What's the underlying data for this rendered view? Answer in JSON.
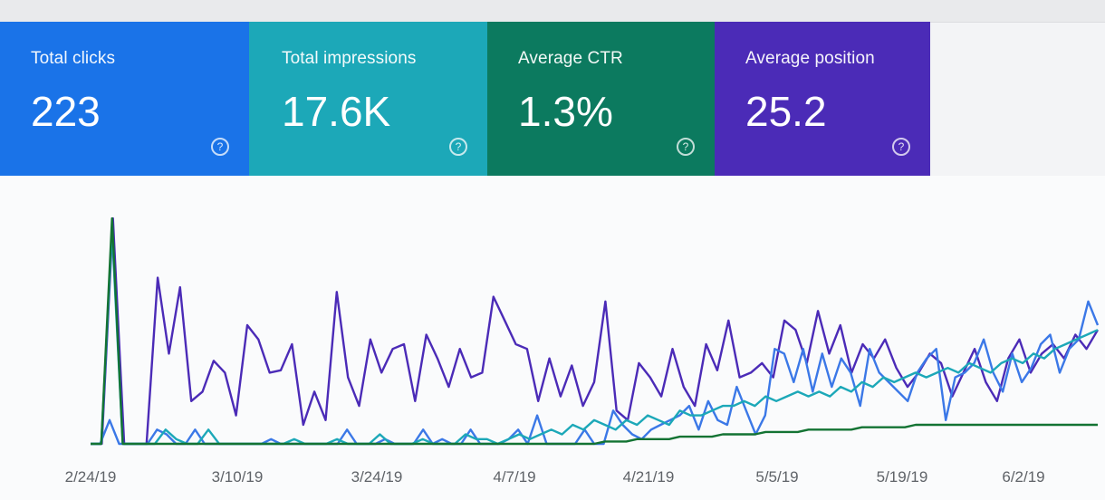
{
  "cards": [
    {
      "label": "Total clicks",
      "value": "223",
      "color": "#1a73e8"
    },
    {
      "label": "Total impressions",
      "value": "17.6K",
      "color": "#1ca8b8"
    },
    {
      "label": "Average CTR",
      "value": "1.3%",
      "color": "#0c7a5f"
    },
    {
      "label": "Average position",
      "value": "25.2",
      "color": "#4b2bb7"
    }
  ],
  "help_glyph": "?",
  "chart_data": {
    "type": "line",
    "x_tick_labels": [
      "2/24/19",
      "3/10/19",
      "3/24/19",
      "4/7/19",
      "4/21/19",
      "5/5/19",
      "5/19/19",
      "6/2/19"
    ],
    "grid": false,
    "series": [
      {
        "color": "#4b2bb7",
        "values": [
          0,
          0,
          95,
          0,
          0,
          0,
          70,
          38,
          66,
          18,
          22,
          35,
          30,
          12,
          50,
          44,
          30,
          31,
          42,
          8,
          22,
          10,
          64,
          28,
          16,
          44,
          30,
          40,
          42,
          18,
          46,
          36,
          24,
          40,
          28,
          30,
          62,
          52,
          42,
          40,
          18,
          36,
          20,
          33,
          16,
          26,
          60,
          14,
          10,
          34,
          28,
          20,
          40,
          24,
          16,
          42,
          31,
          52,
          28,
          30,
          34,
          28,
          52,
          48,
          34,
          56,
          38,
          50,
          30,
          42,
          36,
          44,
          32,
          24,
          30,
          38,
          34,
          20,
          30,
          40,
          26,
          18,
          36,
          44,
          30,
          38,
          42,
          36,
          46,
          40,
          48
        ]
      },
      {
        "color": "#3b78e7",
        "values": [
          0,
          0,
          10,
          0,
          0,
          0,
          0,
          6,
          4,
          0,
          0,
          6,
          0,
          0,
          0,
          0,
          0,
          0,
          0,
          2,
          0,
          0,
          0,
          0,
          0,
          0,
          0,
          6,
          0,
          0,
          0,
          2,
          0,
          0,
          0,
          6,
          0,
          2,
          0,
          0,
          6,
          0,
          0,
          0,
          2,
          6,
          0,
          12,
          0,
          0,
          0,
          0,
          6,
          0,
          0,
          14,
          8,
          4,
          2,
          6,
          8,
          10,
          12,
          16,
          6,
          18,
          10,
          8,
          24,
          14,
          4,
          12,
          40,
          38,
          26,
          40,
          22,
          38,
          24,
          36,
          30,
          16,
          40,
          30,
          26,
          22,
          18,
          30,
          36,
          40,
          10,
          28,
          30,
          34,
          44,
          30,
          22,
          38,
          26,
          32,
          42,
          46,
          30,
          40,
          44,
          60,
          50
        ]
      },
      {
        "color": "#1ca8b8",
        "values": [
          0,
          0,
          90,
          0,
          0,
          0,
          0,
          6,
          2,
          0,
          0,
          6,
          0,
          0,
          0,
          0,
          0,
          0,
          0,
          2,
          0,
          0,
          0,
          2,
          0,
          0,
          0,
          4,
          0,
          0,
          0,
          2,
          0,
          0,
          0,
          4,
          2,
          2,
          0,
          2,
          4,
          2,
          4,
          6,
          4,
          8,
          6,
          10,
          8,
          6,
          10,
          8,
          12,
          10,
          8,
          14,
          12,
          12,
          14,
          16,
          16,
          18,
          16,
          20,
          18,
          20,
          22,
          20,
          22,
          20,
          24,
          22,
          26,
          24,
          28,
          26,
          28,
          30,
          28,
          30,
          32,
          30,
          34,
          32,
          30,
          34,
          36,
          34,
          38,
          36,
          40,
          42,
          44,
          46,
          48
        ]
      },
      {
        "color": "#137333",
        "values": [
          0,
          0,
          95,
          0,
          0,
          0,
          0,
          0,
          0,
          0,
          0,
          0,
          0,
          0,
          0,
          0,
          0,
          0,
          0,
          0,
          0,
          0,
          0,
          0,
          0,
          0,
          0,
          0,
          0,
          0,
          0,
          0,
          0,
          0,
          0,
          0,
          0,
          0,
          0,
          0,
          0,
          0,
          0,
          0,
          0,
          0,
          0,
          0,
          1,
          1,
          1,
          2,
          2,
          2,
          2,
          3,
          3,
          3,
          3,
          4,
          4,
          4,
          4,
          5,
          5,
          5,
          5,
          6,
          6,
          6,
          6,
          6,
          7,
          7,
          7,
          7,
          7,
          8,
          8,
          8,
          8,
          8,
          8,
          8,
          8,
          8,
          8,
          8,
          8,
          8,
          8,
          8,
          8,
          8,
          8
        ]
      }
    ]
  }
}
